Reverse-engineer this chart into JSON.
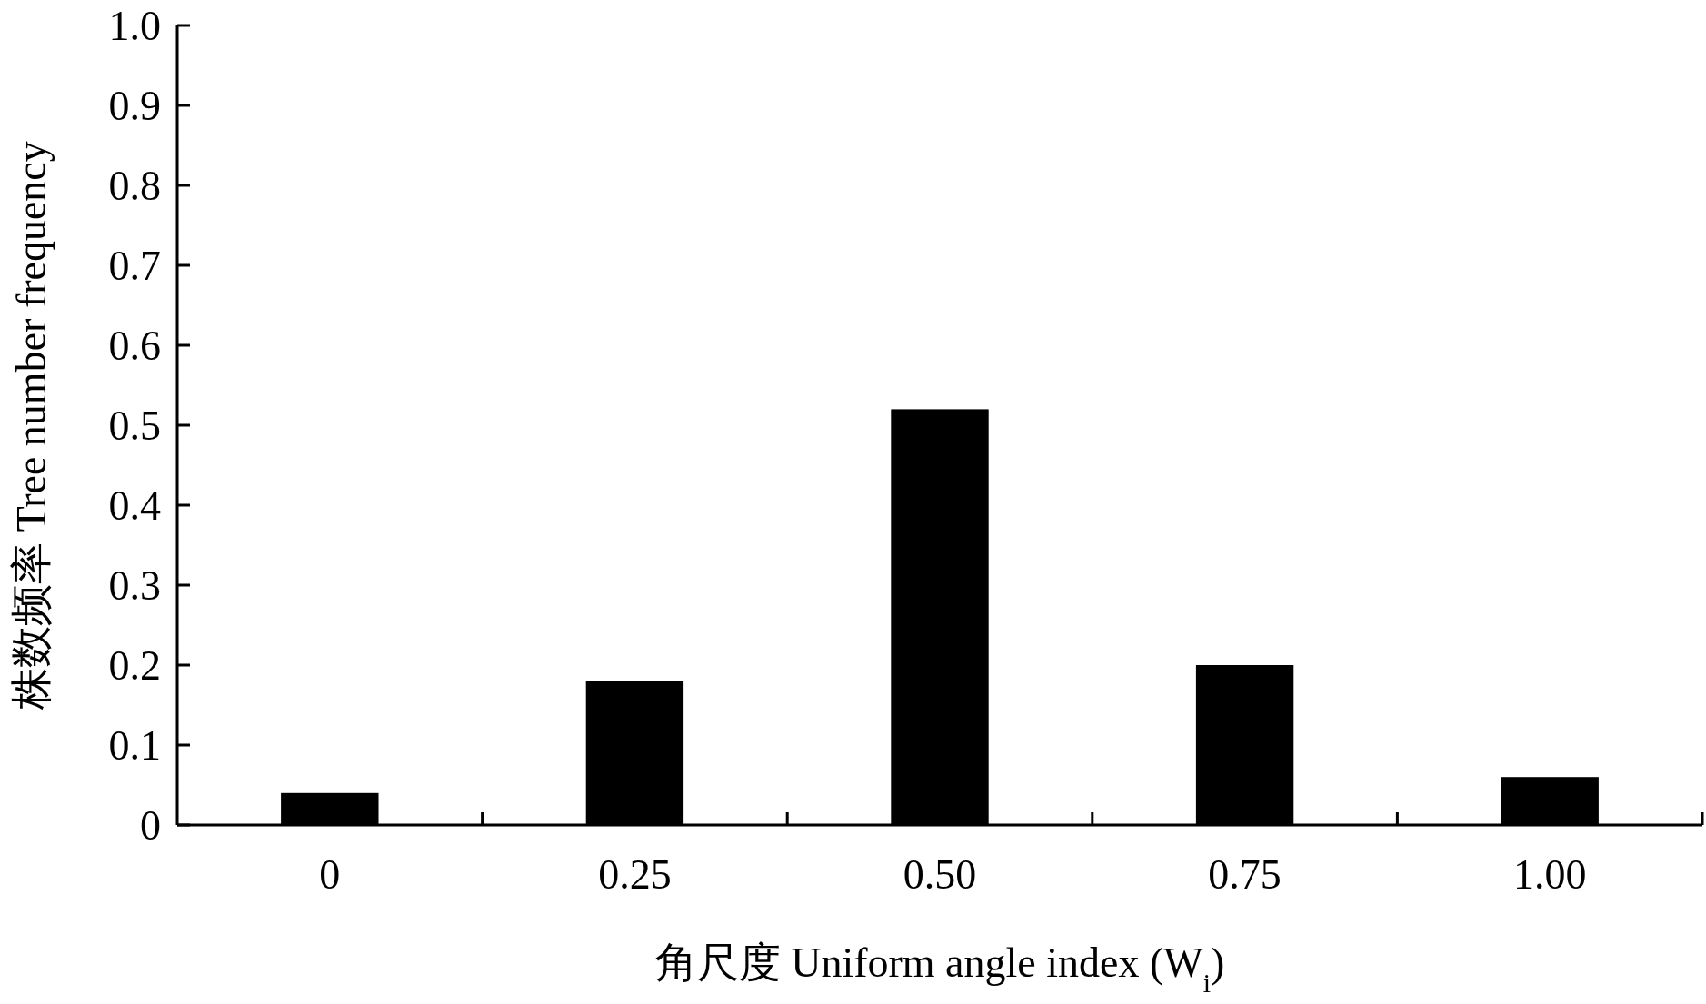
{
  "chart_data": {
    "type": "bar",
    "categories": [
      "0",
      "0.25",
      "0.50",
      "0.75",
      "1.00"
    ],
    "values": [
      0.04,
      0.18,
      0.52,
      0.2,
      0.06
    ],
    "color": "#000000",
    "xlabel": "角尺度 Uniform angle index (W$_{i}$)",
    "ylabel": "株数频率 Tree number frequency",
    "ylim": [
      0,
      1
    ],
    "yticks": [
      0,
      0.1,
      0.2,
      0.3,
      0.4,
      0.5,
      0.6,
      0.7,
      0.8,
      0.9,
      {
        "value": 1,
        "label": "1.0"
      }
    ],
    "grid": false
  }
}
